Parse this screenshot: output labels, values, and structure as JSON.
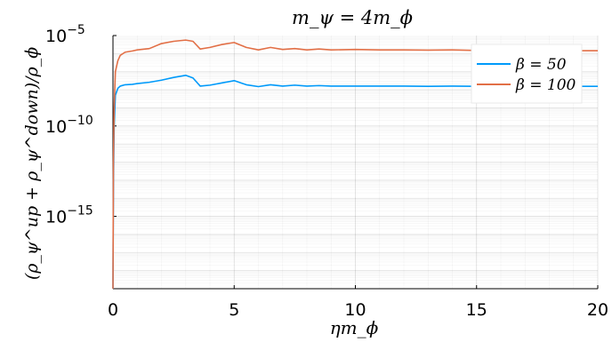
{
  "chart_data": {
    "type": "line",
    "title": "m_ψ = 4m_ϕ",
    "xlabel": "ηm_ϕ",
    "ylabel": "(ρ_ψ^up + ρ_ψ^down)/ρ_ϕ",
    "xlim": [
      0,
      20
    ],
    "ylim": [
      1e-19,
      1e-05
    ],
    "yscale": "log",
    "x_ticks": [
      0,
      5,
      10,
      15,
      20
    ],
    "x_tick_labels": [
      "0",
      "5",
      "10",
      "15",
      "20"
    ],
    "y_ticks": [
      1e-15,
      1e-10,
      1e-05
    ],
    "y_tick_labels": [
      {
        "base": "10",
        "exp": "−15"
      },
      {
        "base": "10",
        "exp": "−10"
      },
      {
        "base": "10",
        "exp": "−5"
      }
    ],
    "grid": true,
    "legend_position": "top-right",
    "series": [
      {
        "name": "β = 50",
        "color": "#009AFA",
        "x": [
          0,
          0.02,
          0.05,
          0.1,
          0.2,
          0.3,
          0.5,
          0.8,
          1.0,
          1.5,
          2.0,
          2.5,
          3.0,
          3.3,
          3.6,
          4.0,
          4.5,
          5.0,
          5.5,
          6.0,
          6.5,
          7.0,
          7.5,
          8.0,
          8.5,
          9.0,
          10,
          11,
          12,
          13,
          14,
          15,
          16,
          17,
          18,
          19,
          20
        ],
        "y": [
          1e-19,
          1e-13,
          1e-10,
          5e-09,
          1.2e-08,
          1.6e-08,
          1.9e-08,
          2e-08,
          2.2e-08,
          2.6e-08,
          3.4e-08,
          4.8e-08,
          6.3e-08,
          4.5e-08,
          1.6e-08,
          1.8e-08,
          2.4e-08,
          3.2e-08,
          1.9e-08,
          1.5e-08,
          1.9e-08,
          1.6e-08,
          1.8e-08,
          1.6e-08,
          1.7e-08,
          1.6e-08,
          1.6e-08,
          1.6e-08,
          1.6e-08,
          1.55e-08,
          1.6e-08,
          1.55e-08,
          1.55e-08,
          1.55e-08,
          1.55e-08,
          1.55e-08,
          1.55e-08
        ]
      },
      {
        "name": "β = 100",
        "color": "#E26F46",
        "x": [
          0,
          0.02,
          0.05,
          0.1,
          0.2,
          0.3,
          0.5,
          0.8,
          1.0,
          1.5,
          2.0,
          2.5,
          3.0,
          3.3,
          3.6,
          4.0,
          4.5,
          5.0,
          5.5,
          6.0,
          6.5,
          7.0,
          7.5,
          8.0,
          8.5,
          9.0,
          10,
          11,
          12,
          13,
          14,
          15,
          16,
          17,
          18,
          19,
          20
        ],
        "y": [
          1e-19,
          1e-12,
          1e-09,
          1e-07,
          4e-07,
          8e-07,
          1.2e-06,
          1.4e-06,
          1.6e-06,
          1.9e-06,
          3.6e-06,
          4.8e-06,
          5.6e-06,
          4.8e-06,
          1.8e-06,
          2.2e-06,
          3.2e-06,
          4.1e-06,
          2.2e-06,
          1.6e-06,
          2.2e-06,
          1.7e-06,
          1.9e-06,
          1.6e-06,
          1.8e-06,
          1.6e-06,
          1.7e-06,
          1.6e-06,
          1.6e-06,
          1.55e-06,
          1.6e-06,
          1.5e-06,
          1.45e-06,
          1.5e-06,
          1.45e-06,
          1.45e-06,
          1.45e-06
        ]
      }
    ]
  }
}
